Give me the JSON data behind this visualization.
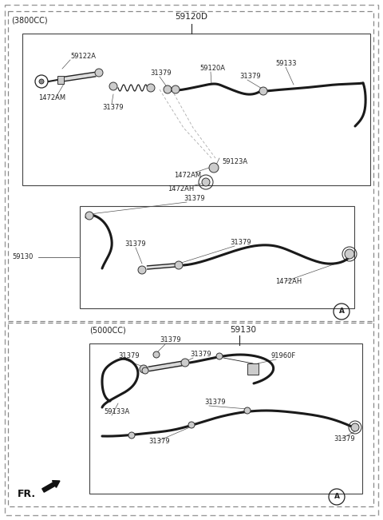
{
  "bg_color": "#ffffff",
  "fig_w": 4.8,
  "fig_h": 6.51,
  "dpi": 100,
  "section1_label": "(3800CC)",
  "section1_callout": "59120D",
  "section2_left_label": "59130",
  "section3_label": "(5000CC)",
  "section3_callout": "59130",
  "fr_label": "FR.",
  "label_fs": 6.0,
  "title_fs": 7.0,
  "line_color": "#222222",
  "hose_color": "#1a1a1a",
  "box_color": "#555555",
  "dash_color": "#888888",
  "clamp_face": "#cccccc",
  "clamp_edge": "#333333"
}
